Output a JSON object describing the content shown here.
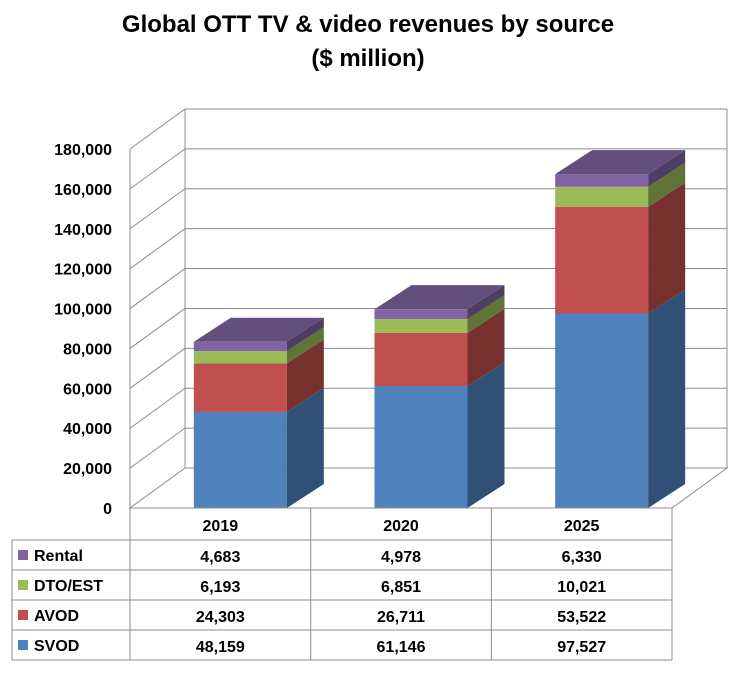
{
  "chart_data": {
    "type": "bar",
    "stacked": true,
    "three_d": true,
    "title": "Global OTT TV & video revenues by source",
    "subtitle": "($ million)",
    "categories": [
      "2019",
      "2020",
      "2025"
    ],
    "ylim": [
      0,
      180000
    ],
    "y_ticks": [
      "0",
      "20,000",
      "40,000",
      "60,000",
      "80,000",
      "100,000",
      "120,000",
      "140,000",
      "160,000",
      "180,000"
    ],
    "grid": true,
    "legend": "data-table-left",
    "series": [
      {
        "name": "SVOD",
        "color": "#4f81bd",
        "values": [
          48159,
          61146,
          97527
        ],
        "labels": [
          "48,159",
          "61,146",
          "97,527"
        ]
      },
      {
        "name": "AVOD",
        "color": "#c0504d",
        "values": [
          24303,
          26711,
          53522
        ],
        "labels": [
          "24,303",
          "26,711",
          "53,522"
        ]
      },
      {
        "name": "DTO/EST",
        "color": "#9bbb59",
        "values": [
          6193,
          6851,
          10021
        ],
        "labels": [
          "6,193",
          "6,851",
          "10,021"
        ]
      },
      {
        "name": "Rental",
        "color": "#8064a2",
        "values": [
          4683,
          4978,
          6330
        ],
        "labels": [
          "4,683",
          "4,978",
          "6,330"
        ]
      }
    ]
  }
}
